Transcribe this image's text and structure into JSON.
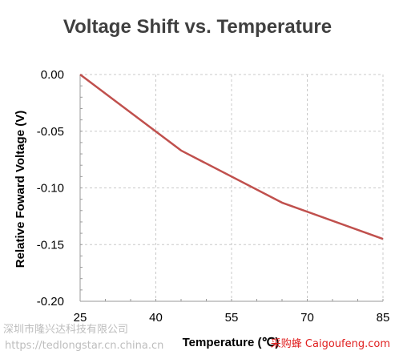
{
  "chart_data": {
    "type": "line",
    "title": "Voltage Shift vs. Temperature",
    "xlabel": "Temperature  (℃)",
    "ylabel": "Relative Foward Voltage (V)",
    "xlim": [
      25,
      85
    ],
    "ylim": [
      -0.2,
      0.0
    ],
    "x_ticks": [
      "25",
      "40",
      "55",
      "70",
      "85"
    ],
    "y_ticks": [
      "0.00",
      "-0.05",
      "-0.10",
      "-0.15",
      "-0.20"
    ],
    "grid": true,
    "series": [
      {
        "color": "#c0504d",
        "x": [
          25,
          45,
          65,
          85
        ],
        "y": [
          0.0,
          -0.067,
          -0.113,
          -0.145
        ]
      }
    ]
  },
  "watermarks": {
    "company": "深圳市隆兴达科技有限公司",
    "url": "https://tedlongstar.cn.china.cn",
    "caigou": "采购蜂 Caigoufeng.com"
  }
}
